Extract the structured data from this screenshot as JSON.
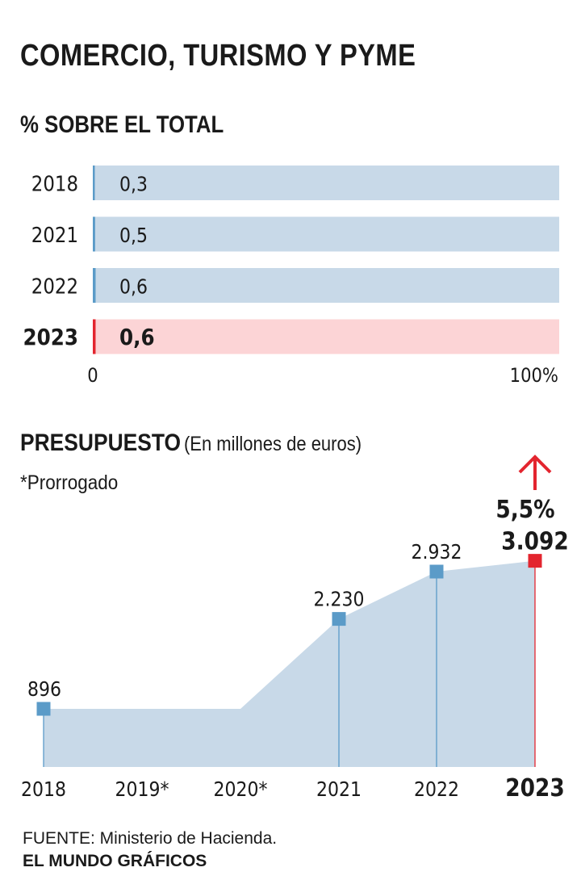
{
  "title": "COMERCIO, TURISMO Y PYME",
  "chart_data": [
    {
      "type": "bar",
      "orientation": "horizontal",
      "title": "% SOBRE EL TOTAL",
      "categories": [
        "2018",
        "2021",
        "2022",
        "2023"
      ],
      "values": [
        0.3,
        0.5,
        0.6,
        0.6
      ],
      "value_labels": [
        "0,3",
        "0,5",
        "0,6",
        "0,6"
      ],
      "highlight": "2023",
      "xlim": [
        0,
        100
      ],
      "axis_labels": [
        "0",
        "100%"
      ],
      "colors": {
        "track": "#c8d9e8",
        "track_highlight": "#fcd4d6",
        "bar": "#5b9bc8",
        "bar_highlight": "#e3252f"
      }
    },
    {
      "type": "area",
      "title": "PRESUPUESTO",
      "unit_label": "(En millones de euros)",
      "note": "*Prorrogado",
      "x": [
        "2018",
        "2019*",
        "2020*",
        "2021",
        "2022",
        "2023"
      ],
      "values": [
        896,
        896,
        896,
        2230,
        2932,
        3092
      ],
      "value_labels": [
        "896",
        "",
        "",
        "2.230",
        "2.932",
        "3.092"
      ],
      "marked_points": [
        "2018",
        "2021",
        "2022",
        "2023"
      ],
      "highlight": "2023",
      "change_label": "5,5%",
      "change_direction": "up",
      "colors": {
        "area": "#c8d9e8",
        "marker": "#5b9bc8",
        "highlight": "#e3252f"
      }
    }
  ],
  "footer": {
    "source": "FUENTE: Ministerio de Hacienda.",
    "credit": "EL MUNDO GRÁFICOS"
  }
}
